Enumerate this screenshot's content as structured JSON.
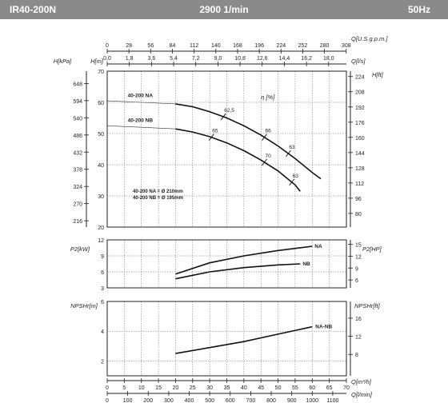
{
  "header": {
    "model": "IR40-200N",
    "speed": "2900 1/min",
    "frequency": "50Hz"
  },
  "chart_data": {
    "type": "line",
    "axes_top": {
      "usgpm_label": "Q[U.S.g.p.m.]",
      "usgpm_ticks": [
        "0",
        "28",
        "56",
        "84",
        "112",
        "140",
        "168",
        "196",
        "224",
        "252",
        "280",
        "308"
      ],
      "ls_label": "Q[l/s]",
      "ls_ticks": [
        "0,0",
        "1,8",
        "3,6",
        "5,4",
        "7,2",
        "9,0",
        "10,8",
        "12,6",
        "14,4",
        "16,2",
        "18,0"
      ]
    },
    "axes_bottom": {
      "m3h_label": "Q[m³/h]",
      "m3h_ticks": [
        "0",
        "5",
        "10",
        "15",
        "20",
        "25",
        "30",
        "35",
        "40",
        "45",
        "50",
        "55",
        "60",
        "65",
        "70"
      ],
      "lmin_label": "Q[l/min]",
      "lmin_ticks": [
        "0",
        "100",
        "200",
        "300",
        "400",
        "500",
        "600",
        "700",
        "800",
        "900",
        "1000",
        "1100"
      ]
    },
    "head_panel": {
      "ylabel_m": "H[m]",
      "ylabel_kpa": "H[kPa]",
      "ylabel_ft": "H[ft]",
      "ylim_m": [
        20,
        70
      ],
      "ticks_m": [
        "20",
        "30",
        "40",
        "50",
        "60",
        "70"
      ],
      "ticks_kpa": [
        "216",
        "270",
        "324",
        "378",
        "432",
        "486",
        "540",
        "594",
        "648"
      ],
      "ticks_ft": [
        "80",
        "96",
        "112",
        "128",
        "144",
        "160",
        "176",
        "192",
        "208",
        "224"
      ],
      "series": [
        {
          "name": "40-200 NA",
          "x": [
            0,
            10,
            20,
            25,
            30,
            35,
            40,
            45,
            50,
            55,
            60,
            62.5
          ],
          "y": [
            60.5,
            60.0,
            59.5,
            58.6,
            57.0,
            55.0,
            52.5,
            49.5,
            46.0,
            42.0,
            37.5,
            35.5
          ]
        },
        {
          "name": "40-200 NB",
          "x": [
            0,
            10,
            20,
            25,
            30,
            35,
            40,
            45,
            50,
            55,
            56.5
          ],
          "y": [
            52.5,
            52.0,
            51.5,
            50.5,
            49.0,
            47.0,
            44.5,
            41.5,
            38.0,
            33.5,
            31.5
          ]
        }
      ],
      "efficiency_label": "η [%]",
      "efficiency_marks": [
        {
          "curve": "NA",
          "label": "62,5",
          "q": 34
        },
        {
          "curve": "NA",
          "label": "66",
          "q": 46
        },
        {
          "curve": "NA",
          "label": "63",
          "q": 53
        },
        {
          "curve": "NB",
          "label": "65",
          "q": 30.5
        },
        {
          "curve": "NB",
          "label": "70",
          "q": 46
        },
        {
          "curve": "NB",
          "label": "63",
          "q": 54
        }
      ],
      "diameters": [
        "40-200 NA = Ø 210mm",
        "40-200 NB = Ø 195mm"
      ]
    },
    "power_panel": {
      "ylabel_kw": "P2[kW]",
      "ylabel_hp": "P2[HP]",
      "ylim_kw": [
        3,
        12
      ],
      "ticks_kw": [
        "3",
        "6",
        "9",
        "12"
      ],
      "ticks_hp": [
        "6",
        "9",
        "12",
        "15"
      ],
      "series": [
        {
          "name": "NA",
          "x": [
            20,
            30,
            40,
            50,
            60
          ],
          "y": [
            5.6,
            7.7,
            9.0,
            10.0,
            10.8
          ]
        },
        {
          "name": "NB",
          "x": [
            20,
            30,
            40,
            50,
            56.5
          ],
          "y": [
            4.7,
            6.0,
            6.8,
            7.3,
            7.5
          ]
        }
      ]
    },
    "npsh_panel": {
      "ylabel_m": "NPSHr[m]",
      "ylabel_ft": "NPSHr[ft]",
      "ylim_m": [
        1,
        6
      ],
      "ticks_m": [
        "2",
        "4",
        "6"
      ],
      "ticks_ft": [
        "8",
        "12",
        "16"
      ],
      "series": [
        {
          "name": "NA-NB",
          "x": [
            20,
            30,
            40,
            50,
            60
          ],
          "y": [
            2.5,
            2.9,
            3.3,
            3.8,
            4.3
          ]
        }
      ]
    }
  }
}
